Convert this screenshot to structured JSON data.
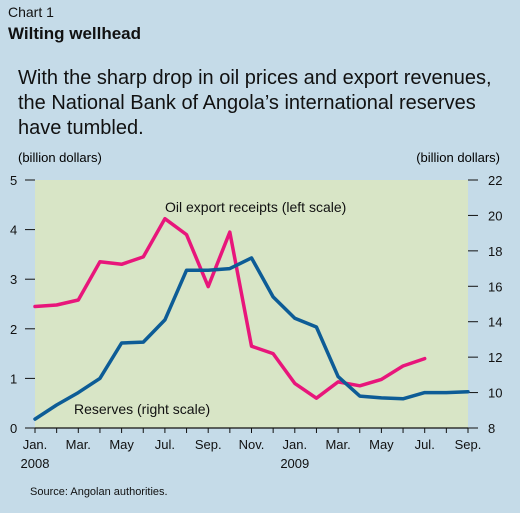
{
  "header": {
    "chart_label": "Chart 1",
    "title": "Wilting wellhead",
    "subtitle": "With the sharp drop in oil prices and export revenues, the National Bank of Angola’s international reserves have tumbled."
  },
  "footer": {
    "source": "Source: Angolan authorities."
  },
  "colors": {
    "background": "#c5dbe8",
    "plot_background": "#d8e5c6",
    "oil_series": "#e8167b",
    "reserves_series": "#0d5c96"
  },
  "chart_data": {
    "type": "line",
    "left_axis": {
      "unit_label": "(billion dollars)",
      "ylim": [
        0,
        5
      ],
      "ticks": [
        "0",
        "1",
        "2",
        "3",
        "4",
        "5"
      ]
    },
    "right_axis": {
      "unit_label": "(billion dollars)",
      "ylim": [
        8,
        22
      ],
      "ticks": [
        "8",
        "10",
        "12",
        "14",
        "16",
        "18",
        "20",
        "22"
      ]
    },
    "x_tick_labels": [
      {
        "month_index": 0,
        "label": "Jan.",
        "year": "2008"
      },
      {
        "month_index": 2,
        "label": "Mar.",
        "year": ""
      },
      {
        "month_index": 4,
        "label": "May",
        "year": ""
      },
      {
        "month_index": 6,
        "label": "Jul.",
        "year": ""
      },
      {
        "month_index": 8,
        "label": "Sep.",
        "year": ""
      },
      {
        "month_index": 10,
        "label": "Nov.",
        "year": ""
      },
      {
        "month_index": 12,
        "label": "Jan.",
        "year": "2009"
      },
      {
        "month_index": 14,
        "label": "Mar.",
        "year": ""
      },
      {
        "month_index": 16,
        "label": "May",
        "year": ""
      },
      {
        "month_index": 18,
        "label": "Jul.",
        "year": ""
      },
      {
        "month_index": 20,
        "label": "Sep.",
        "year": ""
      }
    ],
    "grid": false,
    "series": [
      {
        "name": "Oil export receipts (left scale)",
        "axis": "left",
        "x": [
          0,
          1,
          2,
          3,
          4,
          5,
          6,
          7,
          8,
          9,
          10,
          11,
          12,
          13,
          14,
          15,
          16,
          17,
          18
        ],
        "values": [
          2.45,
          2.48,
          2.58,
          3.35,
          3.3,
          3.45,
          4.22,
          3.9,
          2.85,
          3.95,
          1.65,
          1.5,
          0.9,
          0.6,
          0.93,
          0.85,
          0.98,
          1.25,
          1.4
        ]
      },
      {
        "name": "Reserves (right scale)",
        "axis": "right",
        "x": [
          0,
          1,
          2,
          3,
          4,
          5,
          6,
          7,
          8,
          9,
          10,
          11,
          12,
          13,
          14,
          15,
          16,
          17,
          18,
          19,
          20
        ],
        "values": [
          8.5,
          9.3,
          10.0,
          10.8,
          12.8,
          12.85,
          14.1,
          16.9,
          16.9,
          17.0,
          17.6,
          15.4,
          14.2,
          13.7,
          10.9,
          9.8,
          9.7,
          9.65,
          10.0,
          10.0,
          10.05
        ]
      }
    ]
  }
}
